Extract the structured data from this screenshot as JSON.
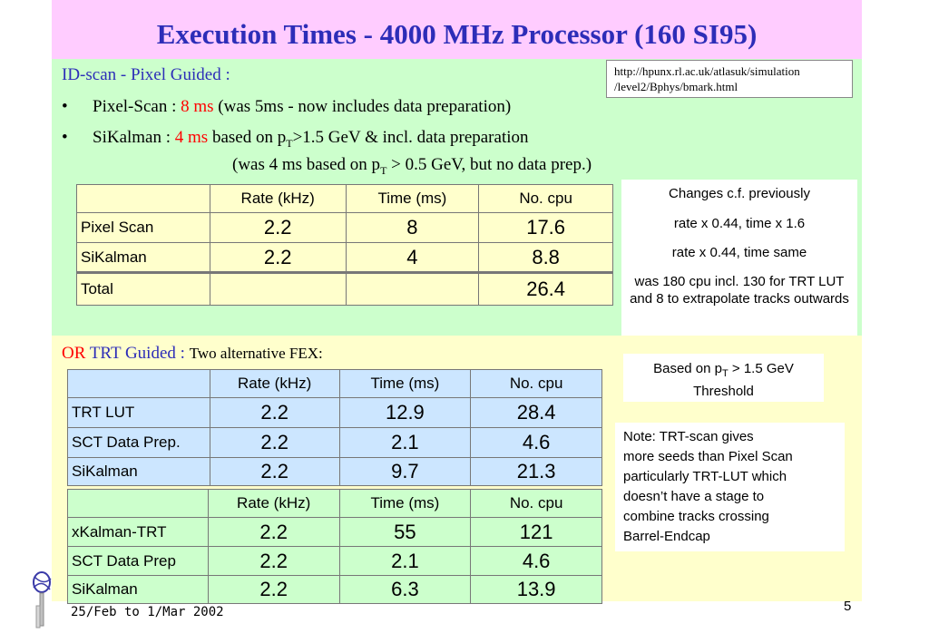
{
  "title": "Execution Times  - 4000 MHz Processor (160 SI95)",
  "url_box": {
    "line1": "http://hpunx.rl.ac.uk/atlasuk/simulation",
    "line2": "/level2/Bphys/bmark.html"
  },
  "section1": {
    "heading": "ID-scan - Pixel Guided :",
    "bullet1": {
      "prefix": "Pixel-Scan : ",
      "value": "8 ms",
      "suffix": " (was 5ms - now includes data preparation)"
    },
    "bullet2": {
      "prefix": "SiKalman : ",
      "value": "4 ms",
      "mid": "  based on p",
      "sub": "T",
      "suffix": ">1.5 GeV & incl. data preparation"
    },
    "bullet2_cont": {
      "prefix": "(was 4 ms based on p",
      "sub": "T",
      "suffix": " > 0.5 GeV, but no data prep.)"
    }
  },
  "table1": {
    "headers": [
      "",
      "Rate (kHz)",
      "Time (ms)",
      "No. cpu"
    ],
    "rows": [
      [
        "Pixel Scan",
        "2.2",
        "8",
        "17.6"
      ],
      [
        "SiKalman",
        "2.2",
        "4",
        "8.8"
      ],
      [
        "Total",
        "",
        "",
        "26.4"
      ]
    ]
  },
  "note1": {
    "l1": "Changes c.f. previously",
    "l2": "rate x 0.44,  time  x 1.6",
    "l3": "rate x 0.44, time same",
    "l4": "was 180 cpu incl. 130 for TRT LUT and 8 to extrapolate tracks outwards"
  },
  "section2": {
    "or": "OR",
    "heading": " TRT Guided : ",
    "sub": "Two alternative FEX:"
  },
  "note2": {
    "prefix": "Based on p",
    "sub": "T",
    "suffix": " > 1.5 GeV Threshold"
  },
  "table2": {
    "headers": [
      "",
      "Rate (kHz)",
      "Time (ms)",
      "No. cpu"
    ],
    "rows": [
      [
        "TRT LUT",
        "2.2",
        "12.9",
        "28.4"
      ],
      [
        "SCT Data Prep.",
        "2.2",
        "2.1",
        "4.6"
      ],
      [
        "SiKalman",
        "2.2",
        "9.7",
        "21.3"
      ]
    ]
  },
  "table3": {
    "headers": [
      "",
      "Rate (kHz)",
      "Time (ms)",
      "No. cpu"
    ],
    "rows": [
      [
        "xKalman-TRT",
        "2.2",
        "55",
        "121"
      ],
      [
        "SCT Data Prep",
        "2.2",
        "2.1",
        "4.6"
      ],
      [
        "SiKalman",
        "2.2",
        "6.3",
        "13.9"
      ]
    ]
  },
  "note3": {
    "l1": "Note: TRT-scan gives",
    "l2": "more seeds than Pixel Scan",
    "l3": "particularly TRT-LUT which",
    "l4": "doesn’t have a stage to",
    "l5": "combine tracks crossing",
    "l6": "Barrel-Endcap"
  },
  "footer": {
    "date": "25/Feb to 1/Mar 2002",
    "page": "5"
  },
  "colors": {
    "title": "#2d2db8",
    "title_band": "#ffccff",
    "green_band": "#ccffcc",
    "yellow_band": "#ffffcc",
    "table2_bg": "#cce6ff",
    "highlight": "#ff0000"
  }
}
